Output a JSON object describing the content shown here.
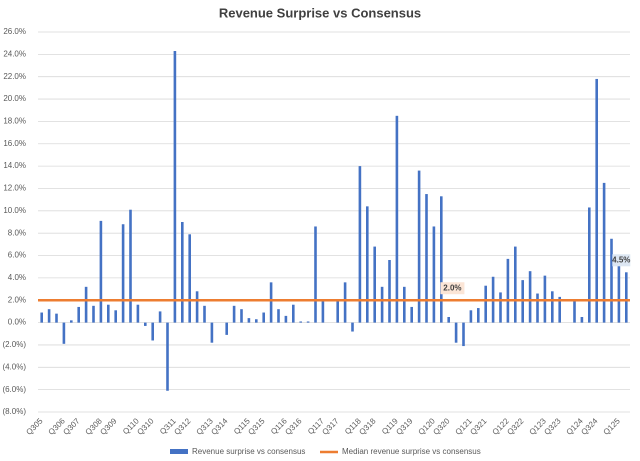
{
  "chart_data": {
    "type": "bar",
    "title": "Revenue Surprise vs Consensus",
    "categories": [
      "Q305",
      null,
      null,
      "Q306",
      null,
      "Q307",
      null,
      null,
      "Q308",
      null,
      "Q309",
      null,
      null,
      "Q110",
      null,
      "Q310",
      null,
      null,
      "Q311",
      null,
      "Q312",
      null,
      null,
      "Q313",
      null,
      "Q314",
      null,
      null,
      "Q115",
      null,
      "Q315",
      null,
      null,
      "Q116",
      null,
      "Q316",
      null,
      null,
      "Q117",
      null,
      "Q317",
      null,
      null,
      "Q118",
      null,
      "Q318",
      null,
      null,
      "Q119",
      null,
      "Q319",
      null,
      null,
      "Q120",
      null,
      "Q320",
      null,
      null,
      "Q121",
      null,
      "Q321",
      null,
      null,
      "Q122",
      null,
      "Q322",
      null,
      null,
      "Q123",
      null,
      "Q323",
      null,
      null,
      "Q124",
      null,
      "Q324",
      null,
      null,
      "Q125",
      null
    ],
    "series": [
      {
        "name": "Revenue surprise vs consensus",
        "color": "#4472c4",
        "values": [
          0.9,
          1.2,
          0.8,
          -1.9,
          0.2,
          1.4,
          3.2,
          1.5,
          9.1,
          1.6,
          1.1,
          8.8,
          10.1,
          1.6,
          -0.3,
          -1.6,
          1.0,
          -6.1,
          24.3,
          9.0,
          7.9,
          2.8,
          1.5,
          -1.8,
          0,
          -1.1,
          1.5,
          1.2,
          0.4,
          0.3,
          0.9,
          3.6,
          1.2,
          0.6,
          1.6,
          0.1,
          0.1,
          8.6,
          1.9,
          0,
          2.0,
          3.6,
          -0.8,
          14.0,
          10.4,
          6.8,
          3.2,
          5.6,
          18.5,
          3.2,
          1.4,
          13.6,
          11.5,
          8.6,
          11.3,
          0.5,
          -1.8,
          -2.1,
          1.1,
          1.3,
          3.3,
          4.1,
          2.7,
          5.7,
          6.8,
          3.8,
          4.6,
          2.6,
          4.2,
          2.8,
          2.3,
          0,
          2.0,
          0.5,
          10.3,
          21.8,
          12.5,
          7.5,
          6.0,
          4.5
        ],
        "value_labels": [
          null,
          null,
          null,
          null,
          null,
          null,
          null,
          null,
          null,
          null,
          null,
          null,
          null,
          null,
          null,
          null,
          null,
          null,
          null,
          null,
          null,
          null,
          null,
          null,
          null,
          null,
          null,
          null,
          null,
          null,
          null,
          null,
          null,
          null,
          null,
          null,
          null,
          null,
          null,
          null,
          null,
          null,
          null,
          null,
          null,
          null,
          null,
          null,
          null,
          null,
          null,
          null,
          null,
          null,
          null,
          null,
          null,
          null,
          null,
          null,
          null,
          null,
          null,
          null,
          null,
          null,
          null,
          null,
          null,
          null,
          null,
          null,
          null,
          null,
          null,
          null,
          null,
          null,
          null,
          "4.5%"
        ]
      }
    ],
    "median": {
      "name": "Median revenue surprise vs consensus",
      "color": "#ed7d31",
      "value": 2.0,
      "value_label": "2.0%"
    },
    "ylim": [
      -8,
      26
    ],
    "yticks": [
      {
        "value": -8,
        "label": "(8.0%)"
      },
      {
        "value": -6,
        "label": "(6.0%)"
      },
      {
        "value": -4,
        "label": "(4.0%)"
      },
      {
        "value": -2,
        "label": "(2.0%)"
      },
      {
        "value": 0,
        "label": "0.0%"
      },
      {
        "value": 2,
        "label": "2.0%"
      },
      {
        "value": 4,
        "label": "4.0%"
      },
      {
        "value": 6,
        "label": "6.0%"
      },
      {
        "value": 8,
        "label": "8.0%"
      },
      {
        "value": 10,
        "label": "10.0%"
      },
      {
        "value": 12,
        "label": "12.0%"
      },
      {
        "value": 14,
        "label": "14.0%"
      },
      {
        "value": 16,
        "label": "16.0%"
      },
      {
        "value": 18,
        "label": "18.0%"
      },
      {
        "value": 20,
        "label": "20.0%"
      },
      {
        "value": 22,
        "label": "22.0%"
      },
      {
        "value": 24,
        "label": "24.0%"
      },
      {
        "value": 26,
        "label": "26.0%"
      }
    ],
    "grid": true
  }
}
